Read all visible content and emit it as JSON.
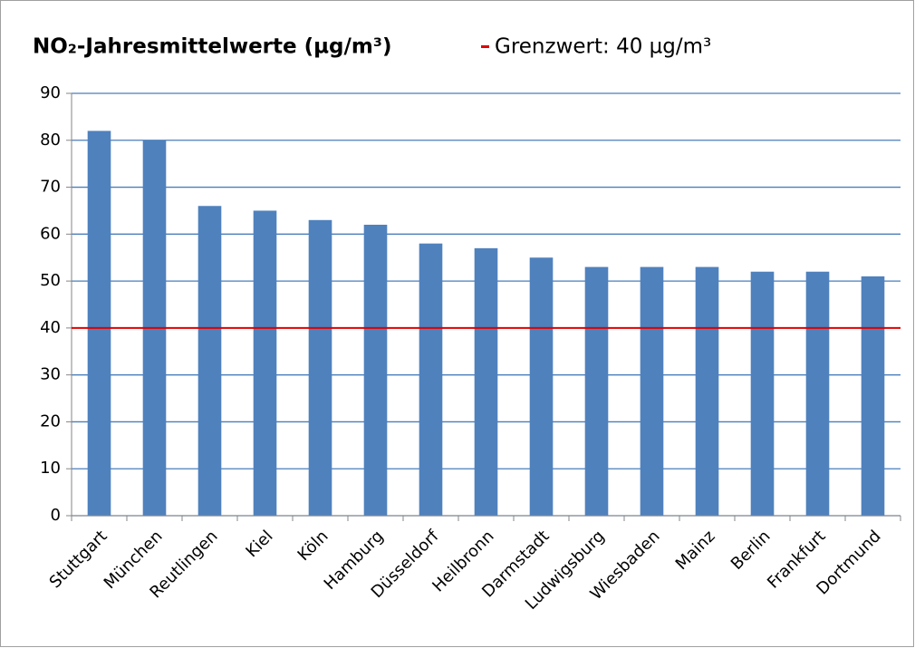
{
  "chart_data": {
    "type": "bar",
    "title": "NO₂-Jahresmittelwerte (µg/m³)",
    "categories": [
      "Stuttgart",
      "München",
      "Reutlingen",
      "Kiel",
      "Köln",
      "Hamburg",
      "Düsseldorf",
      "Heilbronn",
      "Darmstadt",
      "Ludwigsburg",
      "Wiesbaden",
      "Mainz",
      "Berlin",
      "Frankfurt",
      "Dortmund"
    ],
    "values": [
      82,
      80,
      66,
      65,
      63,
      62,
      58,
      57,
      55,
      53,
      53,
      53,
      52,
      52,
      51
    ],
    "color": "#4f81bd",
    "ylim": [
      0,
      90
    ],
    "yticks": [
      0,
      10,
      20,
      30,
      40,
      50,
      60,
      70,
      80,
      90
    ],
    "grid": true,
    "grid_color": "#4a7ebb",
    "reference_line": {
      "value": 40,
      "label": "Grenzwert:  40 µg/m³",
      "color": "#e00000"
    }
  }
}
